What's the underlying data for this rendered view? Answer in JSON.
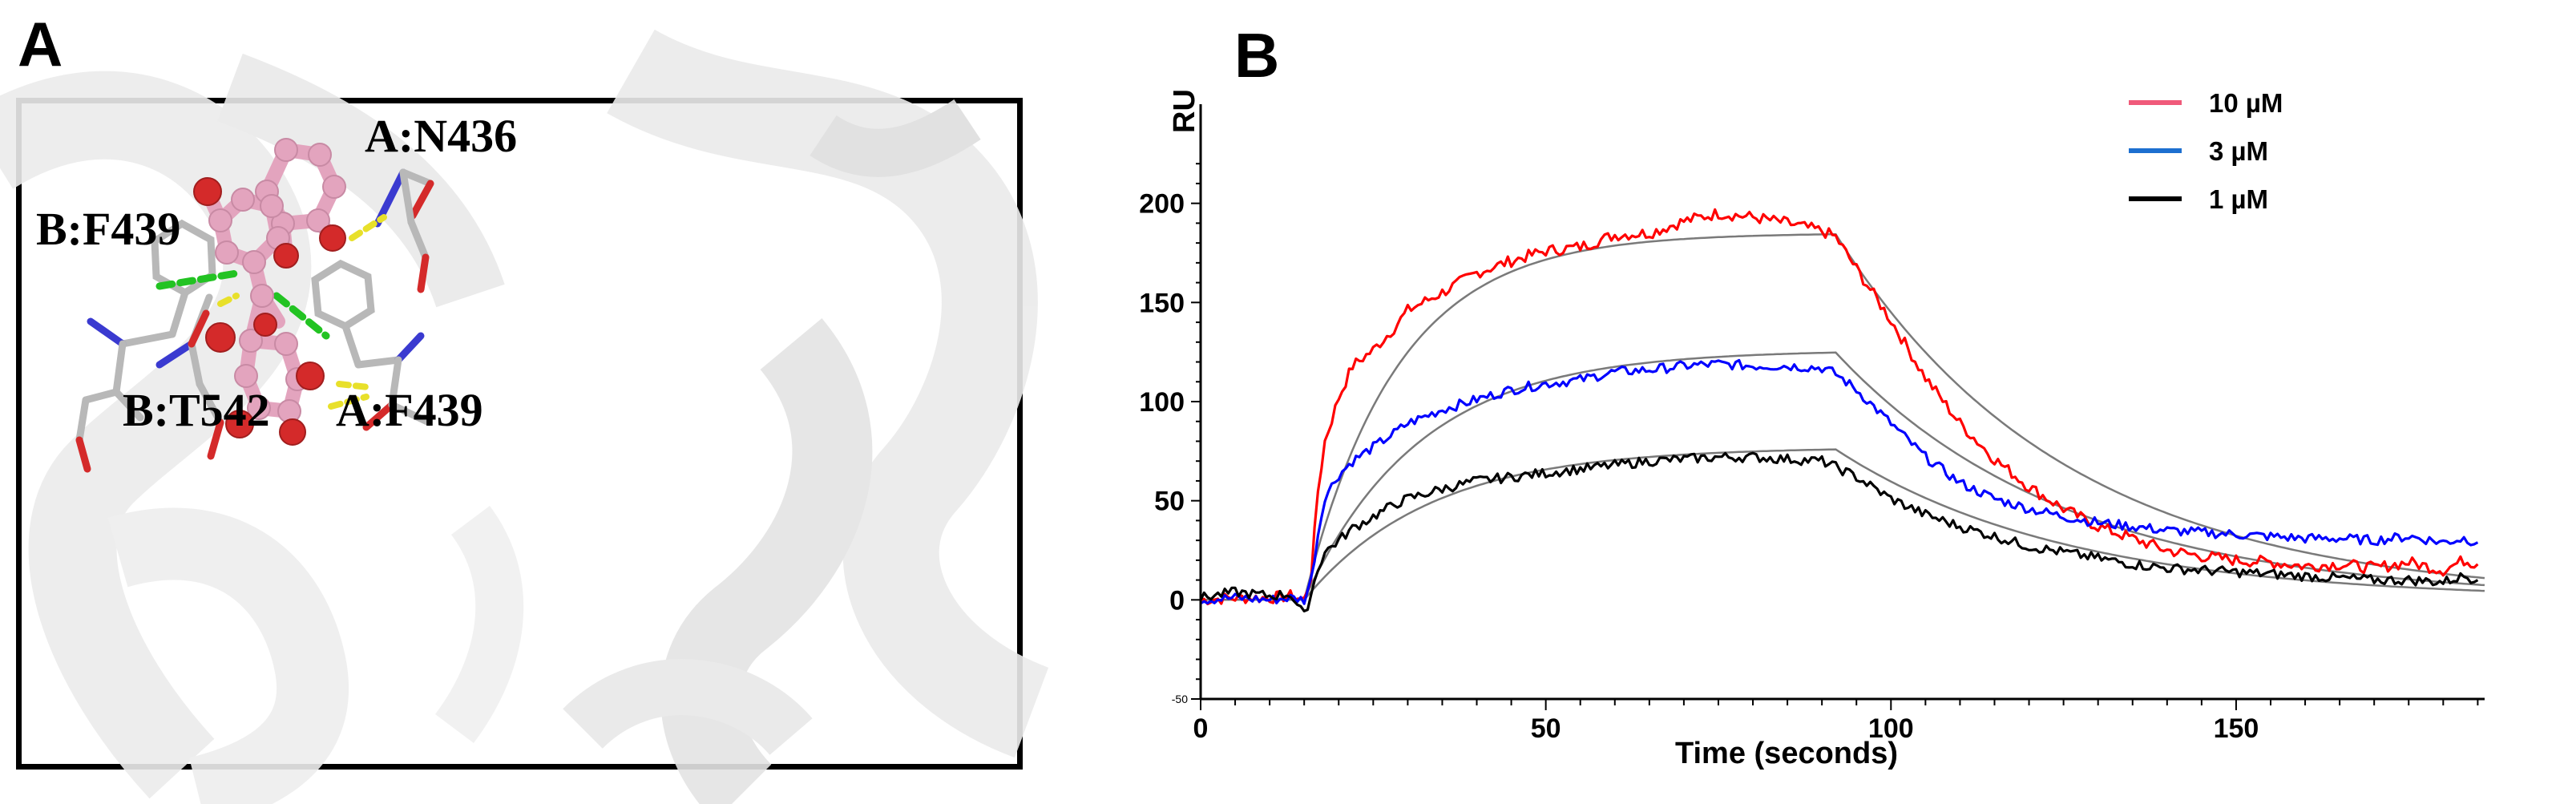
{
  "panels": {
    "a": {
      "letter": "A"
    },
    "b": {
      "letter": "B"
    }
  },
  "structure": {
    "residue_labels": {
      "a_n436": "A:N436",
      "b_f439": "B:F439",
      "b_t542": "B:T542",
      "a_f439": "A:F439"
    },
    "colors": {
      "ligand": "#e3a4be",
      "oxygen": "#d42a2a",
      "nitrogen": "#3a3ad0",
      "carbon": "#b8b8b8",
      "hbond_green": "#22c322",
      "hbond_yellow": "#e8e02a",
      "cartoon": "#e6e6e6"
    }
  },
  "chart_data": {
    "type": "line",
    "title": "",
    "xlabel": "Time (seconds)",
    "ylabel": "RU",
    "xlim": [
      0,
      186
    ],
    "ylim": [
      -50,
      250
    ],
    "x_ticks": [
      0,
      50,
      100,
      150
    ],
    "y_ticks": [
      0,
      50,
      100,
      150,
      200
    ],
    "y_tick_small": -50,
    "grid": false,
    "legend_position": "top-right",
    "series": [
      {
        "name": "10 µM",
        "color": "#ff0000",
        "x": [
          0,
          5,
          10,
          13,
          15,
          16,
          17,
          18,
          20,
          22,
          25,
          28,
          30,
          35,
          40,
          45,
          50,
          55,
          60,
          65,
          70,
          75,
          80,
          85,
          90,
          92,
          95,
          100,
          105,
          110,
          115,
          120,
          125,
          130,
          135,
          140,
          145,
          150,
          155,
          160,
          165,
          170,
          175,
          180,
          183,
          185
        ],
        "y": [
          0,
          1,
          1,
          2,
          0,
          12,
          55,
          80,
          102,
          118,
          126,
          137,
          146,
          155,
          165,
          171,
          176,
          178,
          184,
          185,
          191,
          195,
          193,
          190,
          186,
          183,
          167,
          141,
          112,
          89,
          71,
          57,
          46,
          37,
          31,
          25,
          22,
          20,
          19,
          17,
          18,
          16,
          19,
          15,
          20,
          18
        ]
      },
      {
        "name": "3 µM",
        "color": "#0000ff",
        "x": [
          0,
          5,
          10,
          13,
          15,
          16,
          17,
          18,
          20,
          22,
          25,
          28,
          30,
          35,
          40,
          45,
          50,
          55,
          60,
          65,
          70,
          75,
          80,
          85,
          90,
          92,
          95,
          100,
          105,
          110,
          115,
          120,
          125,
          130,
          135,
          140,
          145,
          150,
          155,
          160,
          165,
          170,
          175,
          180,
          183,
          185
        ],
        "y": [
          0,
          1,
          0,
          1,
          0,
          10,
          33,
          52,
          63,
          70,
          77,
          84,
          89,
          96,
          101,
          106,
          109,
          111,
          115,
          116,
          118,
          119,
          118,
          118,
          117,
          114,
          106,
          89,
          72,
          59,
          51,
          46,
          42,
          39,
          37,
          35,
          34,
          33,
          32,
          31,
          31,
          30,
          32,
          29,
          31,
          29
        ]
      },
      {
        "name": "1 µM",
        "color": "#000000",
        "x": [
          0,
          5,
          10,
          13,
          15,
          16,
          17,
          18,
          20,
          22,
          25,
          28,
          30,
          35,
          40,
          45,
          50,
          55,
          60,
          65,
          70,
          75,
          80,
          85,
          90,
          92,
          95,
          100,
          105,
          110,
          115,
          120,
          125,
          130,
          135,
          140,
          145,
          150,
          155,
          160,
          165,
          170,
          175,
          180,
          183,
          185
        ],
        "y": [
          1,
          4,
          2,
          3,
          -8,
          3,
          16,
          24,
          30,
          36,
          42,
          48,
          51,
          56,
          60,
          62,
          64,
          66,
          68,
          70,
          71,
          72,
          72,
          71,
          70,
          67,
          62,
          51,
          43,
          37,
          32,
          27,
          24,
          21,
          18,
          16,
          15,
          14,
          13,
          12,
          11,
          10,
          10,
          9,
          12,
          10
        ]
      }
    ],
    "fits": {
      "color": "#7a7a7a",
      "injection_start": 15,
      "injection_end": 92,
      "end": 186,
      "curves": [
        {
          "plateau": 185,
          "k_on": 0.075,
          "k_off": 0.03,
          "baseline": 0
        },
        {
          "plateau": 126,
          "k_on": 0.06,
          "k_off": 0.03,
          "baseline": 0
        },
        {
          "plateau": 77,
          "k_on": 0.055,
          "k_off": 0.03,
          "baseline": 0
        }
      ]
    }
  }
}
